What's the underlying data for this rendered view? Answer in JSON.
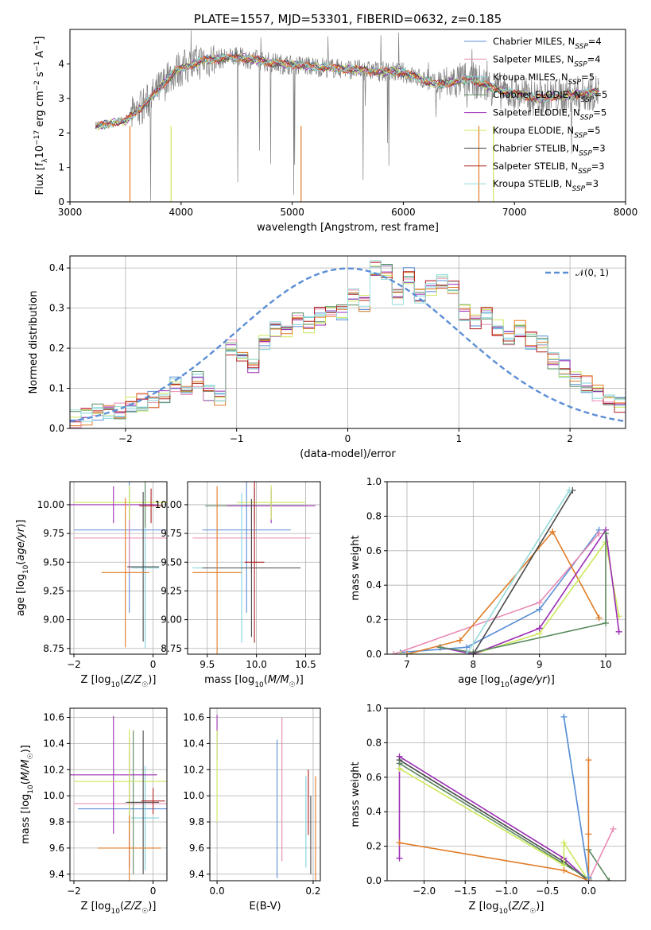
{
  "figure_title": "PLATE=1557, MJD=53301, FIBERID=0632, z=0.185",
  "colors": {
    "chabrier_miles": "#5b8ed6",
    "salpeter_miles": "#e98bb5",
    "kroupa_miles": "#7fd3dd",
    "chabrier_elodie": "#59895e",
    "salpeter_elodie": "#9b2db4",
    "kroupa_elodie": "#cbe85a",
    "chabrier_stelib": "#4a4a4a",
    "salpeter_stelib": "#b02020",
    "kroupa_stelib": "#95dada",
    "orange": "#e07b25",
    "data": "#808080",
    "normal": "#5b8ed6"
  },
  "chart_data": [
    {
      "id": "spectrum",
      "type": "line",
      "title": "PLATE=1557, MJD=53301, FIBERID=0632, z=0.185",
      "xlabel": "wavelength [Angstrom, rest frame]",
      "ylabel": "Flux [f_λ 10^-17 erg cm^-2 s^-1 A^-1]",
      "xlim": [
        3000,
        8000
      ],
      "ylim": [
        0,
        5
      ],
      "grid": false,
      "xticks": [
        "3000",
        "4000",
        "5000",
        "6000",
        "7000",
        "8000"
      ],
      "yticks": [
        "0",
        "1",
        "2",
        "3",
        "4"
      ],
      "legend_position": "right",
      "legend": [
        "Chabrier MILES, N_SSP=4",
        "Salpeter MILES, N_SSP=4",
        "Kroupa MILES, N_SSP=5",
        "Chabrier ELODIE, N_SSP=5",
        "Salpeter ELODIE, N_SSP=5",
        "Kroupa ELODIE, N_SSP=5",
        "Chabrier STELIB, N_SSP=3",
        "Salpeter STELIB, N_SSP=3",
        "Kroupa STELIB, N_SSP=3"
      ],
      "continuum": [
        [
          3230,
          2.2
        ],
        [
          3500,
          2.35
        ],
        [
          3700,
          2.9
        ],
        [
          3950,
          3.8
        ],
        [
          4200,
          4.1
        ],
        [
          4500,
          4.2
        ],
        [
          4900,
          4.0
        ],
        [
          5300,
          3.9
        ],
        [
          5700,
          3.8
        ],
        [
          6000,
          3.75
        ],
        [
          6300,
          3.4
        ],
        [
          6600,
          3.55
        ],
        [
          6900,
          3.2
        ],
        [
          7200,
          3.0
        ],
        [
          7500,
          3.1
        ],
        [
          7760,
          3.2
        ]
      ]
    },
    {
      "id": "residuals",
      "type": "histogram",
      "xlabel": "(data-model)/error",
      "ylabel": "Normed distribution",
      "xlim": [
        -2.5,
        2.5
      ],
      "ylim": [
        0,
        0.43
      ],
      "grid": true,
      "xticks": [
        "−2",
        "−1",
        "0",
        "1",
        "2"
      ],
      "yticks": [
        "0.0",
        "0.1",
        "0.2",
        "0.3",
        "0.4"
      ],
      "legend": [
        "𝒩(0, 1)"
      ],
      "legend_position": "top-right",
      "bin_width": 0.1,
      "bin_start": -2.5,
      "base_values": [
        0.025,
        0.03,
        0.04,
        0.035,
        0.045,
        0.06,
        0.065,
        0.07,
        0.085,
        0.11,
        0.1,
        0.12,
        0.09,
        0.08,
        0.2,
        0.17,
        0.15,
        0.21,
        0.25,
        0.25,
        0.27,
        0.26,
        0.28,
        0.3,
        0.29,
        0.33,
        0.31,
        0.4,
        0.39,
        0.33,
        0.38,
        0.33,
        0.35,
        0.37,
        0.35,
        0.29,
        0.27,
        0.28,
        0.25,
        0.23,
        0.25,
        0.22,
        0.21,
        0.17,
        0.15,
        0.12,
        0.11,
        0.09,
        0.08,
        0.06,
        0.06,
        0.05,
        0.05,
        0.04,
        0.04,
        0.04,
        0.035,
        0.03,
        0.03,
        0.025
      ]
    },
    {
      "id": "age_vs_z",
      "type": "scatter",
      "xlabel": "Z [log10(Z/Z☉)]",
      "ylabel": "age [log10(age/yr)]",
      "xlim": [
        -2.1,
        0.35
      ],
      "ylim": [
        8.7,
        10.2
      ],
      "grid": true,
      "xticks": [
        "−2",
        "0"
      ],
      "yticks": [
        "8.75",
        "9.00",
        "9.25",
        "9.50",
        "9.75",
        "10.00"
      ],
      "points": [
        {
          "model": "chabrier_miles",
          "x": -0.6,
          "y": 9.78,
          "xerr": 1.4,
          "yerr": 0.72
        },
        {
          "model": "salpeter_miles",
          "x": -0.6,
          "y": 9.71,
          "xerr": 1.4,
          "yerr": 0.3
        },
        {
          "model": "kroupa_miles",
          "x": -0.2,
          "y": 9.45,
          "xerr": 0.35,
          "yerr": 0.7
        },
        {
          "model": "chabrier_elodie",
          "x": -0.2,
          "y": 10.0,
          "xerr": 0.2,
          "yerr": 0.2
        },
        {
          "model": "salpeter_elodie",
          "x": -1.0,
          "y": 10.0,
          "xerr": 1.1,
          "yerr": 0.16
        },
        {
          "model": "kroupa_elodie",
          "x": -0.6,
          "y": 10.02,
          "xerr": 1.4,
          "yerr": 0.15
        },
        {
          "model": "chabrier_stelib",
          "x": -0.25,
          "y": 9.46,
          "xerr": 0.4,
          "yerr": 0.65
        },
        {
          "model": "salpeter_stelib",
          "x": -0.05,
          "y": 9.99,
          "xerr": 0.3,
          "yerr": 0.15
        },
        {
          "model": "orange",
          "x": -0.7,
          "y": 9.41,
          "xerr": 0.6,
          "yerr": 0.65
        }
      ]
    },
    {
      "id": "age_vs_mass",
      "type": "scatter",
      "xlabel": "mass [log10(M/M☉)]",
      "ylabel": "",
      "xlim": [
        9.3,
        10.65
      ],
      "ylim": [
        8.7,
        10.2
      ],
      "grid": true,
      "xticks": [
        "9.5",
        "10.0",
        "10.5"
      ],
      "yticks": [
        "8.75",
        "9.00",
        "9.25",
        "9.50",
        "9.75",
        "10.00"
      ],
      "points": [
        {
          "model": "chabrier_miles",
          "x": 9.9,
          "y": 9.78,
          "xerr": 0.45,
          "yerr": 0.72
        },
        {
          "model": "salpeter_miles",
          "x": 9.95,
          "y": 9.71,
          "xerr": 0.6,
          "yerr": 0.3
        },
        {
          "model": "kroupa_miles",
          "x": 9.85,
          "y": 9.45,
          "xerr": 0.5,
          "yerr": 0.65
        },
        {
          "model": "chabrier_elodie",
          "x": 9.98,
          "y": 9.99,
          "xerr": 0.5,
          "yerr": 0.15
        },
        {
          "model": "salpeter_elodie",
          "x": 10.15,
          "y": 9.99,
          "xerr": 0.45,
          "yerr": 0.15
        },
        {
          "model": "kroupa_elodie",
          "x": 10.15,
          "y": 10.02,
          "xerr": 0.35,
          "yerr": 0.15
        },
        {
          "model": "chabrier_stelib",
          "x": 9.95,
          "y": 9.45,
          "xerr": 0.5,
          "yerr": 0.6
        },
        {
          "model": "salpeter_stelib",
          "x": 9.98,
          "y": 9.5,
          "xerr": 0.1,
          "yerr": 0.7
        },
        {
          "model": "orange",
          "x": 9.6,
          "y": 9.41,
          "xerr": 0.25,
          "yerr": 0.75
        }
      ]
    },
    {
      "id": "weight_vs_age",
      "type": "line",
      "xlabel": "age [log10(age/yr)]",
      "ylabel": "mass weight",
      "xlim": [
        6.7,
        10.3
      ],
      "ylim": [
        0,
        1
      ],
      "grid": true,
      "xticks": [
        "7",
        "8",
        "9",
        "10"
      ],
      "yticks": [
        "0.0",
        "0.2",
        "0.4",
        "0.6",
        "0.8",
        "1.0"
      ],
      "series": [
        {
          "model": "chabrier_miles",
          "x": [
            6.9,
            7.9,
            9.0,
            9.9
          ],
          "y": [
            0.01,
            0.04,
            0.26,
            0.72
          ]
        },
        {
          "model": "salpeter_miles",
          "x": [
            6.8,
            9.0,
            9.9
          ],
          "y": [
            0.0,
            0.3,
            0.7
          ]
        },
        {
          "model": "orange",
          "x": [
            7.0,
            7.8,
            9.2,
            9.9
          ],
          "y": [
            0.0,
            0.08,
            0.71,
            0.21
          ]
        },
        {
          "model": "kroupa_elodie",
          "x": [
            6.9,
            8.0,
            9.0,
            10.0,
            10.2
          ],
          "y": [
            0.0,
            0.0,
            0.12,
            0.65,
            0.22
          ]
        },
        {
          "model": "salpeter_elodie",
          "x": [
            7.5,
            8.0,
            9.0,
            10.0,
            10.2
          ],
          "y": [
            0.04,
            0.0,
            0.15,
            0.72,
            0.13
          ]
        },
        {
          "model": "chabrier_elodie",
          "x": [
            7.5,
            8.0,
            10.0,
            10.0
          ],
          "y": [
            0.04,
            0.01,
            0.18,
            0.7
          ]
        },
        {
          "model": "chabrier_stelib",
          "x": [
            8.0,
            9.5
          ],
          "y": [
            0.0,
            0.95
          ]
        },
        {
          "model": "kroupa_stelib",
          "x": [
            7.9,
            9.45
          ],
          "y": [
            0.0,
            0.95
          ]
        }
      ]
    },
    {
      "id": "mass_vs_z",
      "type": "scatter",
      "xlabel": "Z [log10(Z/Z☉)]",
      "ylabel": "mass [log10(M/M☉)]",
      "xlim": [
        -2.1,
        0.35
      ],
      "ylim": [
        9.35,
        10.67
      ],
      "grid": true,
      "xticks": [
        "−2",
        "0"
      ],
      "yticks": [
        "9.4",
        "9.6",
        "9.8",
        "10.0",
        "10.2",
        "10.4",
        "10.6"
      ],
      "points": [
        {
          "model": "chabrier_miles",
          "x": -0.6,
          "y": 9.9,
          "xerr": 1.3,
          "yerr": 0.45
        },
        {
          "model": "salpeter_miles",
          "x": -0.6,
          "y": 9.94,
          "xerr": 1.4,
          "yerr": 0.5
        },
        {
          "model": "kroupa_miles",
          "x": -0.2,
          "y": 9.83,
          "xerr": 0.35,
          "yerr": 0.4
        },
        {
          "model": "chabrier_elodie",
          "x": -0.5,
          "y": 9.95,
          "xerr": 0.2,
          "yerr": 0.55
        },
        {
          "model": "salpeter_elodie",
          "x": -1.0,
          "y": 10.16,
          "xerr": 1.1,
          "yerr": 0.45
        },
        {
          "model": "kroupa_elodie",
          "x": -0.6,
          "y": 10.11,
          "xerr": 1.4,
          "yerr": 0.4
        },
        {
          "model": "chabrier_stelib",
          "x": -0.25,
          "y": 9.95,
          "xerr": 0.4,
          "yerr": 0.55
        },
        {
          "model": "salpeter_stelib",
          "x": 0.0,
          "y": 9.96,
          "xerr": 0.3,
          "yerr": 0.1
        },
        {
          "model": "orange",
          "x": -0.6,
          "y": 9.6,
          "xerr": 0.8,
          "yerr": 0.25
        }
      ]
    },
    {
      "id": "mass_vs_ebv",
      "type": "scatter",
      "xlabel": "E(B-V)",
      "ylabel": "",
      "xlim": [
        -0.015,
        0.215
      ],
      "ylim": [
        9.35,
        10.67
      ],
      "grid": true,
      "xticks": [
        "0.0",
        "0.2"
      ],
      "yticks": [
        "9.4",
        "9.6",
        "9.8",
        "10.0",
        "10.2",
        "10.4",
        "10.6"
      ],
      "points": [
        {
          "model": "chabrier_miles",
          "x": 0.125,
          "y": 9.9,
          "yerr": 0.53
        },
        {
          "model": "salpeter_miles",
          "x": 0.135,
          "y": 10.05,
          "yerr": 0.55
        },
        {
          "model": "kroupa_miles",
          "x": 0.185,
          "y": 9.8,
          "yerr": 0.35
        },
        {
          "model": "salpeter_elodie",
          "x": 0.0,
          "y": 10.45,
          "yerr": 0.17
        },
        {
          "model": "kroupa_elodie",
          "x": 0.0,
          "y": 10.15,
          "yerr": 0.35
        },
        {
          "model": "chabrier_stelib",
          "x": 0.195,
          "y": 9.7,
          "yerr": 0.3
        },
        {
          "model": "salpeter_stelib",
          "x": 0.19,
          "y": 9.95,
          "yerr": 0.25
        },
        {
          "model": "orange",
          "x": 0.205,
          "y": 9.75,
          "yerr": 0.4
        }
      ]
    },
    {
      "id": "weight_vs_z",
      "type": "line",
      "xlabel": "Z [log10(Z/Z☉)]",
      "ylabel": "mass weight",
      "xlim": [
        -2.45,
        0.45
      ],
      "ylim": [
        0,
        1
      ],
      "grid": true,
      "xticks": [
        "−2.0",
        "−1.5",
        "−1.0",
        "−0.5",
        "0.0"
      ],
      "yticks": [
        "0.0",
        "0.2",
        "0.4",
        "0.6",
        "0.8",
        "1.0"
      ],
      "series": [
        {
          "model": "salpeter_elodie",
          "x": [
            -2.3,
            -2.3,
            -0.3,
            0.0
          ],
          "y": [
            0.13,
            0.72,
            0.13,
            0.0
          ]
        },
        {
          "model": "chabrier_stelib",
          "x": [
            -2.3,
            -0.3,
            0.0
          ],
          "y": [
            0.7,
            0.11,
            0.0
          ]
        },
        {
          "model": "chabrier_elodie",
          "x": [
            -2.3,
            0.0,
            0.0,
            0.25
          ],
          "y": [
            0.68,
            0.01,
            0.18,
            0.0
          ]
        },
        {
          "model": "kroupa_elodie",
          "x": [
            -2.3,
            -0.3,
            -0.3,
            0.0
          ],
          "y": [
            0.65,
            0.09,
            0.22,
            0.0
          ]
        },
        {
          "model": "orange",
          "x": [
            -2.3,
            -0.3,
            0.0,
            0.0,
            0.0
          ],
          "y": [
            0.22,
            0.06,
            0.0,
            0.27,
            0.7
          ]
        },
        {
          "model": "salpeter_miles",
          "x": [
            0.0,
            0.3
          ],
          "y": [
            0.0,
            0.3
          ]
        },
        {
          "model": "kroupa_miles",
          "x": [
            -0.3,
            0.0
          ],
          "y": [
            0.95,
            0.02
          ]
        },
        {
          "model": "chabrier_miles",
          "x": [
            -0.3,
            0.0
          ],
          "y": [
            0.95,
            0.02
          ]
        }
      ]
    }
  ]
}
